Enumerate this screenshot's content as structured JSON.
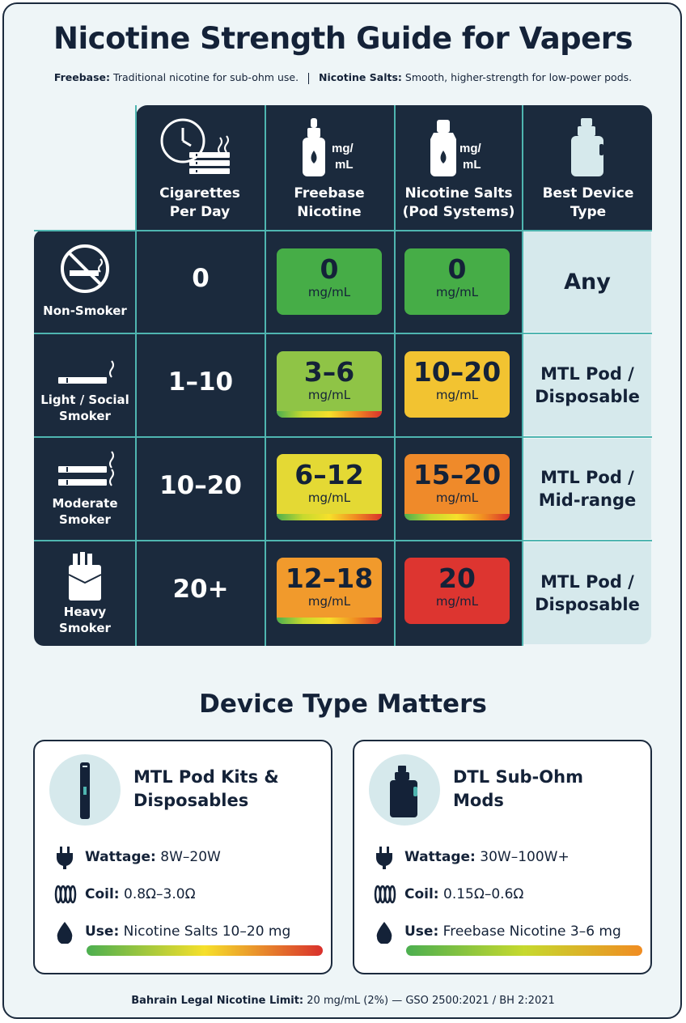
{
  "title": "Nicotine Strength Guide for Vapers",
  "subtitle": {
    "freebase_label": "Freebase:",
    "freebase_text": "Traditional nicotine for sub-ohm use.",
    "salts_label": "Nicotine Salts:",
    "salts_text": "Smooth, higher-strength for low-power pods."
  },
  "table": {
    "headers": [
      {
        "label_line1": "Cigarettes",
        "label_line2": "Per Day",
        "icon": "clock-cigarettes-icon"
      },
      {
        "label_line1": "Freebase",
        "label_line2": "Nicotine",
        "icon": "freebase-bottle-icon",
        "icon_text_1": "mg/",
        "icon_text_2": "mL"
      },
      {
        "label_line1": "Nicotine Salts",
        "label_line2": "(Pod Systems)",
        "icon": "salt-bottle-icon",
        "icon_text_1": "mg/",
        "icon_text_2": "mL"
      },
      {
        "label_line1": "Best Device",
        "label_line2": "Type",
        "icon": "box-mod-icon"
      }
    ],
    "rows": [
      {
        "label_line1": "Non-Smoker",
        "label_line2": "",
        "icon": "no-smoking-icon",
        "cigarettes": "0",
        "freebase": "0",
        "freebase_unit": "mg/mL",
        "freebase_color": "#46ad47",
        "salts": "0",
        "salts_unit": "mg/mL",
        "salts_color": "#46ad47",
        "device_line1": "Any",
        "device_line2": ""
      },
      {
        "label_line1": "Light / Social",
        "label_line2": "Smoker",
        "icon": "single-cigarette-icon",
        "cigarettes": "1–10",
        "freebase": "3–6",
        "freebase_unit": "mg/mL",
        "freebase_color": "#8fc446",
        "salts": "10–20",
        "salts_unit": "mg/mL",
        "salts_color": "#f2c331",
        "device_line1": "MTL Pod /",
        "device_line2": "Disposable"
      },
      {
        "label_line1": "Moderate",
        "label_line2": "Smoker",
        "icon": "two-cigarettes-icon",
        "cigarettes": "10–20",
        "freebase": "6–12",
        "freebase_unit": "mg/mL",
        "freebase_color": "#e4d934",
        "salts": "15–20",
        "salts_unit": "mg/mL",
        "salts_color": "#ef8a2a",
        "device_line1": "MTL Pod /",
        "device_line2": "Mid-range"
      },
      {
        "label_line1": "Heavy",
        "label_line2": "Smoker",
        "icon": "cigarette-pack-icon",
        "cigarettes": "20+",
        "freebase": "12–18",
        "freebase_unit": "mg/mL",
        "freebase_color": "#f19a2c",
        "salts": "20",
        "salts_unit": "mg/mL",
        "salts_color": "#dd3530",
        "device_line1": "MTL Pod /",
        "device_line2": "Disposable"
      }
    ]
  },
  "device_section": {
    "title": "Device Type Matters",
    "cards": [
      {
        "title_line1": "MTL Pod Kits &",
        "title_line2": "Disposables",
        "icon": "pod-device-icon",
        "wattage_label": "Wattage:",
        "wattage": "8W–20W",
        "coil_label": "Coil:",
        "coil": "0.8Ω–3.0Ω",
        "use_label": "Use:",
        "use": "Nicotine Salts 10–20 mg",
        "bar_gradient": [
          "#4caf50",
          "#f6e02b",
          "#d9302c"
        ]
      },
      {
        "title_line1": "DTL Sub-Ohm",
        "title_line2": "Mods",
        "icon": "box-mod-icon",
        "wattage_label": "Wattage:",
        "wattage": "30W–100W+",
        "coil_label": "Coil:",
        "coil": "0.15Ω–0.6Ω",
        "use_label": "Use:",
        "use": "Freebase Nicotine 3–6 mg",
        "bar_gradient": [
          "#4caf50",
          "#c6d92e",
          "#f08c22"
        ]
      }
    ]
  },
  "footer": {
    "label": "Bahrain Legal Nicotine Limit:",
    "text": "20 mg/mL (2%) — GSO 2500:2021 / BH 2:2021"
  }
}
